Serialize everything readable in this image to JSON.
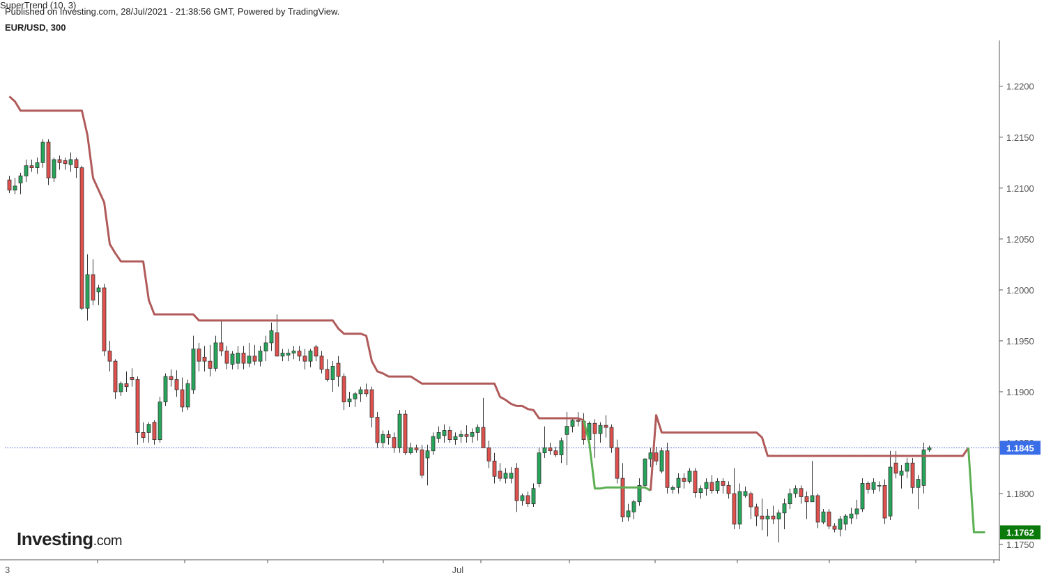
{
  "header": {
    "published": "Published on Investing.com, 28/Jul/2021 - 21:38:56 GMT, Powered by TradingView.",
    "symbol": "EUR/USD, 300",
    "indicator": "SuperTrend (10, 3)"
  },
  "logo": {
    "main": "Investing",
    "suffix": ".com"
  },
  "colors": {
    "up": "#26a65b",
    "down": "#e0504d",
    "supertrend_down": "#b05a5a",
    "supertrend_up": "#5caf52",
    "price_line": "#3a5bd0",
    "price_badge": "#3a6ee8",
    "support_badge": "#0b7a0b"
  },
  "chart_data": {
    "type": "candlestick",
    "ylim": [
      1.1735,
      1.2245
    ],
    "y_ticks": [
      "1.2200",
      "1.2150",
      "1.2100",
      "1.2050",
      "1.2000",
      "1.1950",
      "1.1900",
      "1.1850",
      "1.1800",
      "1.1750"
    ],
    "x_labels": [
      {
        "label": "3",
        "bar": -1
      },
      {
        "label": "Jul",
        "bar": 79
      }
    ],
    "last_price": "1.1845",
    "supertrend_value": "1.1762",
    "ohlc": [
      [
        1.2108,
        1.2112,
        1.2095,
        1.2098
      ],
      [
        1.2098,
        1.211,
        1.2094,
        1.2102
      ],
      [
        1.2105,
        1.2115,
        1.2094,
        1.2112
      ],
      [
        1.2112,
        1.2128,
        1.2106,
        1.2122
      ],
      [
        1.2122,
        1.2128,
        1.2116,
        1.212
      ],
      [
        1.212,
        1.213,
        1.2114,
        1.2125
      ],
      [
        1.2125,
        1.2148,
        1.212,
        1.2145
      ],
      [
        1.2145,
        1.2148,
        1.2103,
        1.211
      ],
      [
        1.211,
        1.213,
        1.2106,
        1.2128
      ],
      [
        1.2128,
        1.2132,
        1.2118,
        1.2125
      ],
      [
        1.2127,
        1.213,
        1.2118,
        1.2124
      ],
      [
        1.2123,
        1.2135,
        1.2116,
        1.2128
      ],
      [
        1.2128,
        1.213,
        1.211,
        1.212
      ],
      [
        1.212,
        1.2122,
        1.198,
        1.1982
      ],
      [
        1.1982,
        1.2035,
        1.197,
        1.2015
      ],
      [
        1.2015,
        1.203,
        1.1985,
        1.199
      ],
      [
        1.1998,
        1.2005,
        1.1985,
        1.2002
      ],
      [
        1.2002,
        1.2006,
        1.1935,
        1.194
      ],
      [
        1.194,
        1.195,
        1.192,
        1.193
      ],
      [
        1.193,
        1.1932,
        1.1893,
        1.19
      ],
      [
        1.19,
        1.191,
        1.1896,
        1.1908
      ],
      [
        1.1908,
        1.192,
        1.19,
        1.1905
      ],
      [
        1.1914,
        1.1923,
        1.1905,
        1.1912
      ],
      [
        1.1912,
        1.1915,
        1.1848,
        1.186
      ],
      [
        1.186,
        1.187,
        1.185,
        1.1855
      ],
      [
        1.186,
        1.187,
        1.185,
        1.1868
      ],
      [
        1.187,
        1.1872,
        1.1848,
        1.1853
      ],
      [
        1.1853,
        1.1895,
        1.185,
        1.189
      ],
      [
        1.189,
        1.1918,
        1.1886,
        1.1915
      ],
      [
        1.1915,
        1.1922,
        1.1905,
        1.1912
      ],
      [
        1.1912,
        1.1921,
        1.1895,
        1.1902
      ],
      [
        1.1902,
        1.1914,
        1.188,
        1.1885
      ],
      [
        1.1885,
        1.1912,
        1.1882,
        1.1908
      ],
      [
        1.1902,
        1.1955,
        1.1898,
        1.1942
      ],
      [
        1.1942,
        1.1948,
        1.192,
        1.193
      ],
      [
        1.1934,
        1.1945,
        1.192,
        1.193
      ],
      [
        1.193,
        1.1946,
        1.1915,
        1.1923
      ],
      [
        1.1923,
        1.1955,
        1.192,
        1.1948
      ],
      [
        1.1948,
        1.197,
        1.1935,
        1.194
      ],
      [
        1.194,
        1.1945,
        1.1922,
        1.1928
      ],
      [
        1.1927,
        1.194,
        1.1922,
        1.1937
      ],
      [
        1.1928,
        1.1945,
        1.1922,
        1.1938
      ],
      [
        1.1938,
        1.1945,
        1.1922,
        1.1928
      ],
      [
        1.1928,
        1.1948,
        1.1924,
        1.1935
      ],
      [
        1.1935,
        1.1946,
        1.1926,
        1.193
      ],
      [
        1.193,
        1.1945,
        1.1925,
        1.194
      ],
      [
        1.194,
        1.1955,
        1.193,
        1.1948
      ],
      [
        1.1948,
        1.1968,
        1.194,
        1.196
      ],
      [
        1.1958,
        1.1976,
        1.1935,
        1.1935
      ],
      [
        1.1935,
        1.1942,
        1.193,
        1.1938
      ],
      [
        1.1936,
        1.1942,
        1.193,
        1.1938
      ],
      [
        1.1938,
        1.1945,
        1.1932,
        1.194
      ],
      [
        1.194,
        1.1945,
        1.193,
        1.1935
      ],
      [
        1.1935,
        1.1942,
        1.1922,
        1.193
      ],
      [
        1.193,
        1.1942,
        1.1924,
        1.194
      ],
      [
        1.1944,
        1.1946,
        1.193,
        1.1935
      ],
      [
        1.1935,
        1.194,
        1.1918,
        1.1922
      ],
      [
        1.1922,
        1.1932,
        1.191,
        1.1912
      ],
      [
        1.1912,
        1.193,
        1.19,
        1.1925
      ],
      [
        1.1928,
        1.1935,
        1.1905,
        1.1915
      ],
      [
        1.1915,
        1.1918,
        1.1882,
        1.189
      ],
      [
        1.189,
        1.19,
        1.1885,
        1.1893
      ],
      [
        1.1893,
        1.19,
        1.1885,
        1.1898
      ],
      [
        1.1898,
        1.1905,
        1.189,
        1.1902
      ],
      [
        1.1902,
        1.1908,
        1.1895,
        1.1898
      ],
      [
        1.1902,
        1.1905,
        1.1865,
        1.1875
      ],
      [
        1.1875,
        1.188,
        1.1845,
        1.185
      ],
      [
        1.185,
        1.1862,
        1.1845,
        1.1858
      ],
      [
        1.1858,
        1.1862,
        1.1848,
        1.1855
      ],
      [
        1.1855,
        1.186,
        1.184,
        1.1845
      ],
      [
        1.1845,
        1.1882,
        1.184,
        1.1878
      ],
      [
        1.1878,
        1.1882,
        1.1838,
        1.184
      ],
      [
        1.184,
        1.185,
        1.1838,
        1.1845
      ],
      [
        1.1845,
        1.1848,
        1.184,
        1.1843
      ],
      [
        1.1843,
        1.1848,
        1.1815,
        1.1818
      ],
      [
        1.1835,
        1.1848,
        1.1808,
        1.1842
      ],
      [
        1.1842,
        1.186,
        1.1838,
        1.1856
      ],
      [
        1.1854,
        1.1866,
        1.185,
        1.186
      ],
      [
        1.1857,
        1.1868,
        1.185,
        1.1862
      ],
      [
        1.1862,
        1.1866,
        1.185,
        1.1853
      ],
      [
        1.1853,
        1.186,
        1.1848,
        1.1856
      ],
      [
        1.1856,
        1.1862,
        1.185,
        1.1858
      ],
      [
        1.1858,
        1.1867,
        1.185,
        1.1856
      ],
      [
        1.1856,
        1.1864,
        1.185,
        1.186
      ],
      [
        1.186,
        1.1868,
        1.1852,
        1.1865
      ],
      [
        1.1865,
        1.1894,
        1.185,
        1.1845
      ],
      [
        1.1845,
        1.1852,
        1.1825,
        1.1832
      ],
      [
        1.1832,
        1.184,
        1.181,
        1.1817
      ],
      [
        1.1822,
        1.183,
        1.1812,
        1.1815
      ],
      [
        1.1815,
        1.1825,
        1.181,
        1.182
      ],
      [
        1.1815,
        1.1826,
        1.181,
        1.182
      ],
      [
        1.1825,
        1.183,
        1.1782,
        1.1793
      ],
      [
        1.1793,
        1.18,
        1.1788,
        1.1798
      ],
      [
        1.1798,
        1.1802,
        1.1787,
        1.179
      ],
      [
        1.179,
        1.181,
        1.1787,
        1.1805
      ],
      [
        1.181,
        1.1845,
        1.1806,
        1.184
      ],
      [
        1.184,
        1.1866,
        1.1835,
        1.1845
      ],
      [
        1.1845,
        1.185,
        1.1838,
        1.1842
      ],
      [
        1.1842,
        1.1846,
        1.1836,
        1.1838
      ],
      [
        1.1838,
        1.1855,
        1.183,
        1.1852
      ],
      [
        1.1858,
        1.188,
        1.1828,
        1.1866
      ],
      [
        1.1866,
        1.1875,
        1.186,
        1.1872
      ],
      [
        1.1872,
        1.188,
        1.1866,
        1.1871
      ],
      [
        1.1871,
        1.1879,
        1.1848,
        1.1853
      ],
      [
        1.1853,
        1.1871,
        1.1846,
        1.1869
      ],
      [
        1.1869,
        1.1873,
        1.1835,
        1.1859
      ],
      [
        1.1859,
        1.187,
        1.185,
        1.1867
      ],
      [
        1.1867,
        1.1877,
        1.1855,
        1.1865
      ],
      [
        1.1865,
        1.1868,
        1.184,
        1.1845
      ],
      [
        1.1845,
        1.1853,
        1.181,
        1.1815
      ],
      [
        1.1815,
        1.183,
        1.1772,
        1.1777
      ],
      [
        1.1777,
        1.179,
        1.1773,
        1.1783
      ],
      [
        1.1782,
        1.1794,
        1.1775,
        1.1792
      ],
      [
        1.1792,
        1.1815,
        1.1788,
        1.1808
      ],
      [
        1.1808,
        1.1835,
        1.1805,
        1.1834
      ],
      [
        1.1834,
        1.1845,
        1.1826,
        1.184
      ],
      [
        1.184,
        1.1846,
        1.1828,
        1.1832
      ],
      [
        1.1822,
        1.1845,
        1.182,
        1.1842
      ],
      [
        1.1842,
        1.185,
        1.18,
        1.1806
      ],
      [
        1.1804,
        1.1808,
        1.18,
        1.1806
      ],
      [
        1.1806,
        1.182,
        1.18,
        1.1815
      ],
      [
        1.1815,
        1.182,
        1.1805,
        1.1812
      ],
      [
        1.1812,
        1.1825,
        1.181,
        1.1822
      ],
      [
        1.1822,
        1.1825,
        1.1796,
        1.1801
      ],
      [
        1.1801,
        1.1808,
        1.1795,
        1.1805
      ],
      [
        1.1805,
        1.1815,
        1.1798,
        1.1811
      ],
      [
        1.1811,
        1.1818,
        1.18,
        1.1803
      ],
      [
        1.1803,
        1.1815,
        1.18,
        1.1812
      ],
      [
        1.1812,
        1.1815,
        1.18,
        1.1808
      ],
      [
        1.1808,
        1.1812,
        1.1795,
        1.18
      ],
      [
        1.18,
        1.1825,
        1.1765,
        1.177
      ],
      [
        1.177,
        1.181,
        1.1765,
        1.1802
      ],
      [
        1.1798,
        1.1807,
        1.1796,
        1.1802
      ],
      [
        1.18,
        1.1802,
        1.1775,
        1.1787
      ],
      [
        1.1787,
        1.179,
        1.1768,
        1.1778
      ],
      [
        1.1778,
        1.1795,
        1.1764,
        1.1775
      ],
      [
        1.1775,
        1.1785,
        1.1758,
        1.1778
      ],
      [
        1.1778,
        1.1788,
        1.177,
        1.1775
      ],
      [
        1.1775,
        1.1784,
        1.1752,
        1.1781
      ],
      [
        1.1781,
        1.1795,
        1.1765,
        1.179
      ],
      [
        1.179,
        1.1805,
        1.1785,
        1.18
      ],
      [
        1.18,
        1.1808,
        1.1796,
        1.1805
      ],
      [
        1.1805,
        1.1808,
        1.179,
        1.1797
      ],
      [
        1.1797,
        1.1802,
        1.1775,
        1.1792
      ],
      [
        1.1792,
        1.1832,
        1.1792,
        1.1798
      ],
      [
        1.1798,
        1.18,
        1.1766,
        1.1772
      ],
      [
        1.1772,
        1.1785,
        1.177,
        1.1782
      ],
      [
        1.1782,
        1.1785,
        1.1765,
        1.1768
      ],
      [
        1.1768,
        1.1771,
        1.1762,
        1.1765
      ],
      [
        1.1765,
        1.1778,
        1.1758,
        1.1775
      ],
      [
        1.177,
        1.178,
        1.1764,
        1.1778
      ],
      [
        1.1776,
        1.1786,
        1.177,
        1.178
      ],
      [
        1.178,
        1.1794,
        1.1775,
        1.1785
      ],
      [
        1.1785,
        1.1815,
        1.1782,
        1.181
      ],
      [
        1.181,
        1.1812,
        1.18,
        1.1804
      ],
      [
        1.1804,
        1.1815,
        1.18,
        1.1811
      ],
      [
        1.1808,
        1.1812,
        1.1802,
        1.1808
      ],
      [
        1.1808,
        1.1814,
        1.177,
        1.1776
      ],
      [
        1.1778,
        1.1842,
        1.1774,
        1.1826
      ],
      [
        1.183,
        1.1842,
        1.1815,
        1.182
      ],
      [
        1.1818,
        1.1828,
        1.1805,
        1.1822
      ],
      [
        1.1822,
        1.1835,
        1.1815,
        1.183
      ],
      [
        1.183,
        1.1835,
        1.18,
        1.1806
      ],
      [
        1.1806,
        1.1818,
        1.1785,
        1.1814
      ],
      [
        1.1808,
        1.185,
        1.18,
        1.1843
      ],
      [
        1.1843,
        1.1847,
        1.1841,
        1.1845
      ]
    ],
    "supertrend": {
      "down": [
        [
          0,
          1.219
        ],
        [
          1,
          1.2185
        ],
        [
          2,
          1.2176
        ],
        [
          13,
          1.2176
        ],
        [
          14,
          1.2152
        ],
        [
          15,
          1.211
        ],
        [
          16,
          1.2098
        ],
        [
          17,
          1.2086
        ],
        [
          18,
          1.2045
        ],
        [
          19,
          1.2036
        ],
        [
          20,
          1.2028
        ],
        [
          24,
          1.2028
        ],
        [
          25,
          1.199
        ],
        [
          26,
          1.1976
        ],
        [
          33,
          1.1976
        ],
        [
          34,
          1.197
        ],
        [
          58,
          1.197
        ],
        [
          59,
          1.1962
        ],
        [
          60,
          1.1957
        ],
        [
          63,
          1.1957
        ],
        [
          64,
          1.1955
        ],
        [
          65,
          1.193
        ],
        [
          66,
          1.192
        ],
        [
          67,
          1.1918
        ],
        [
          68,
          1.1915
        ],
        [
          72,
          1.1915
        ],
        [
          74,
          1.1908
        ],
        [
          87,
          1.1908
        ],
        [
          88,
          1.1895
        ],
        [
          89,
          1.1892
        ],
        [
          90,
          1.1888
        ],
        [
          91,
          1.1886
        ],
        [
          92,
          1.1886
        ],
        [
          93,
          1.1883
        ],
        [
          94,
          1.1882
        ],
        [
          95,
          1.1874
        ],
        [
          102,
          1.1874
        ],
        [
          103,
          1.1872
        ]
      ],
      "up": [
        [
          103,
          1.1872
        ],
        [
          104,
          1.185
        ],
        [
          105,
          1.1805
        ],
        [
          106,
          1.1805
        ],
        [
          107,
          1.1806
        ],
        [
          114,
          1.1806
        ],
        [
          115,
          1.1803
        ]
      ],
      "down2": [
        [
          115,
          1.1803
        ],
        [
          116,
          1.1877
        ],
        [
          117,
          1.186
        ],
        [
          134,
          1.186
        ],
        [
          135,
          1.1855
        ],
        [
          136,
          1.1837
        ],
        [
          171,
          1.1837
        ],
        [
          172,
          1.1845
        ]
      ],
      "up2": [
        [
          172,
          1.1845
        ],
        [
          173,
          1.1762
        ],
        [
          175,
          1.1762
        ]
      ]
    }
  }
}
